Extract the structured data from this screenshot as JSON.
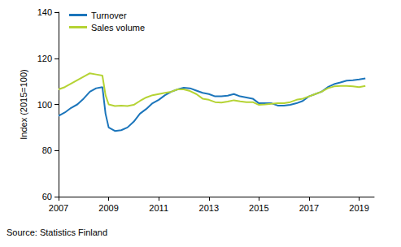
{
  "chart_data": {
    "type": "line",
    "y_label": "Index (2015=100)",
    "source": "Source: Statistics Finland",
    "x": [
      2007,
      2007.25,
      2007.5,
      2007.75,
      2008,
      2008.25,
      2008.5,
      2008.75,
      2008.875,
      2009,
      2009.25,
      2009.5,
      2009.75,
      2010,
      2010.25,
      2010.5,
      2010.75,
      2011,
      2011.25,
      2011.5,
      2011.75,
      2012,
      2012.25,
      2012.5,
      2012.75,
      2013,
      2013.25,
      2013.5,
      2013.75,
      2014,
      2014.25,
      2014.5,
      2014.75,
      2015,
      2015.25,
      2015.5,
      2015.75,
      2016,
      2016.25,
      2016.5,
      2016.75,
      2017,
      2017.25,
      2017.5,
      2017.75,
      2018,
      2018.25,
      2018.5,
      2018.75,
      2019,
      2019.25
    ],
    "series": [
      {
        "name": "Turnover",
        "color": "#1b75bb",
        "values": [
          95,
          96.5,
          98.5,
          100,
          102.5,
          105.5,
          107,
          107.5,
          96,
          90,
          88.5,
          88.8,
          90,
          92.5,
          96,
          98,
          100.5,
          102,
          104,
          105.5,
          106.5,
          107.2,
          107,
          106,
          105,
          104.5,
          103.5,
          103.5,
          103.8,
          104.5,
          103.5,
          103,
          102.5,
          100.5,
          100.5,
          100.5,
          99.5,
          99.5,
          99.8,
          100.5,
          101.5,
          103.5,
          104.5,
          105.5,
          107.5,
          108.8,
          109.5,
          110.3,
          110.5,
          110.8,
          111.3
        ]
      },
      {
        "name": "Sales volume",
        "color": "#b5d334",
        "values": [
          106.5,
          107.5,
          109,
          110.5,
          112,
          113.5,
          113,
          112.5,
          104,
          100,
          99.3,
          99.5,
          99.3,
          99.8,
          101.5,
          103,
          104,
          104.5,
          105,
          105.5,
          106.5,
          106.5,
          105.8,
          104.5,
          102.5,
          102,
          101,
          100.8,
          101.2,
          101.8,
          101.3,
          101,
          101,
          99.8,
          100,
          100.3,
          100.5,
          100.5,
          101,
          102,
          102.5,
          103.5,
          104.5,
          105.5,
          107,
          107.8,
          108,
          108,
          107.8,
          107.5,
          108
        ]
      }
    ],
    "xlim": [
      2007,
      2019.6
    ],
    "xticks": [
      2007,
      2009,
      2011,
      2013,
      2015,
      2017,
      2019
    ],
    "ylim": [
      60,
      140
    ],
    "yticks": [
      60,
      80,
      100,
      120,
      140
    ],
    "grid": false,
    "legend": "top-left"
  }
}
